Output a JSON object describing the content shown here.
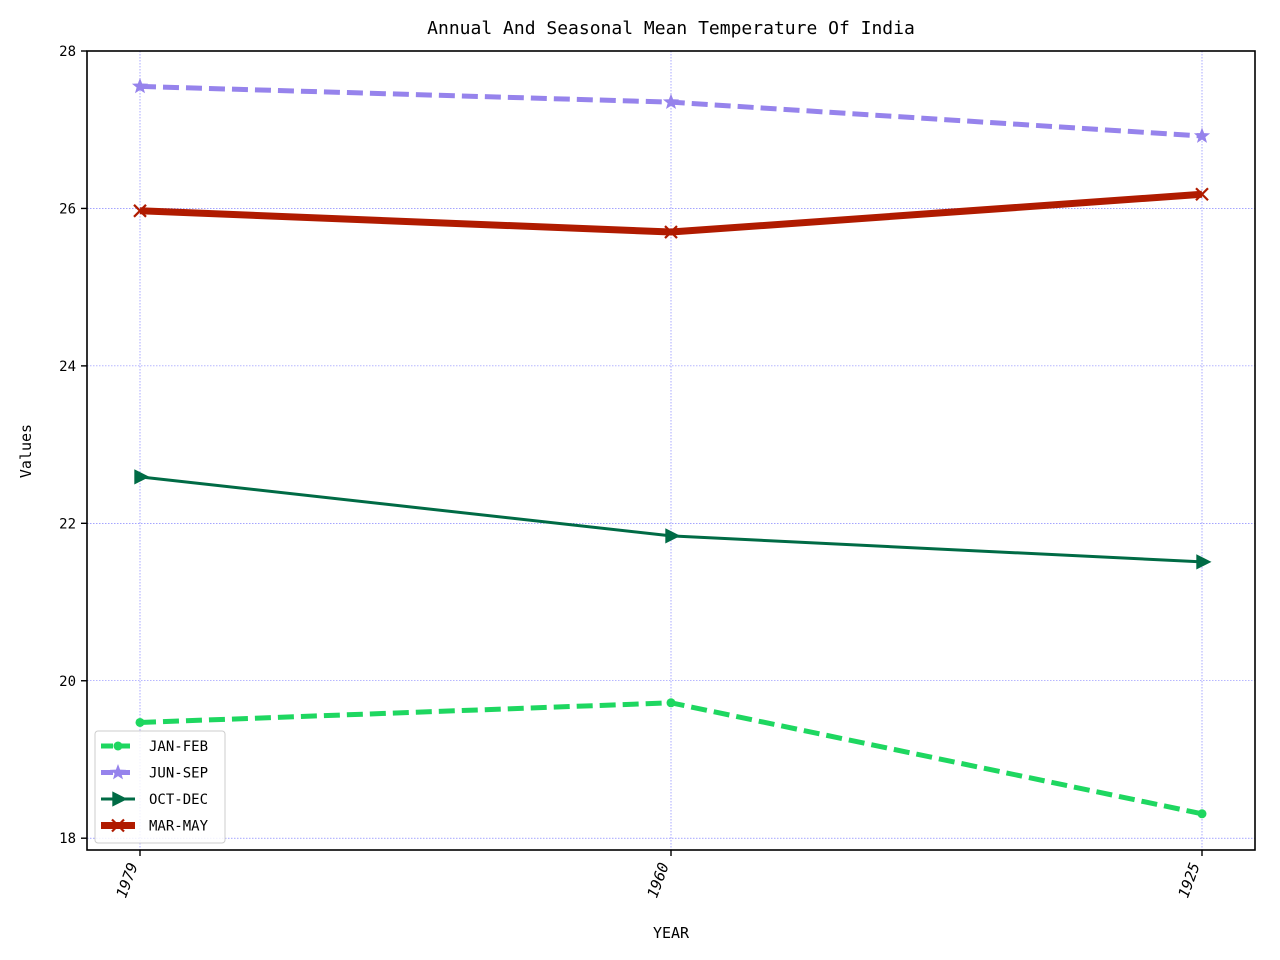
{
  "chart_data": {
    "type": "line",
    "title": "Annual And Seasonal Mean Temperature Of India",
    "xlabel": "YEAR",
    "ylabel": "Values",
    "categories": [
      "1979",
      "1960",
      "1925"
    ],
    "ylim": [
      17.85,
      28.0
    ],
    "yticks": [
      18,
      20,
      22,
      24,
      26,
      28
    ],
    "ytick_labels": [
      "18",
      "20",
      "22",
      "24",
      "26",
      "28"
    ],
    "grid": true,
    "legend_position": "lower-left",
    "series": [
      {
        "name": "JAN-FEB",
        "values": [
          19.47,
          19.72,
          18.31
        ],
        "color": "#1ed760",
        "line_style": "dashed",
        "marker": "circle"
      },
      {
        "name": "JUN-SEP",
        "values": [
          27.55,
          27.35,
          26.92
        ],
        "color": "#9683ec",
        "line_style": "dashed",
        "marker": "star"
      },
      {
        "name": "OCT-DEC",
        "values": [
          22.59,
          21.84,
          21.51
        ],
        "color": "#006b45",
        "line_style": "solid",
        "marker": "triangle-right"
      },
      {
        "name": "MAR-MAY",
        "values": [
          25.97,
          25.7,
          26.18
        ],
        "color": "#b01b00",
        "line_style": "solid-thick",
        "marker": "x"
      }
    ]
  }
}
